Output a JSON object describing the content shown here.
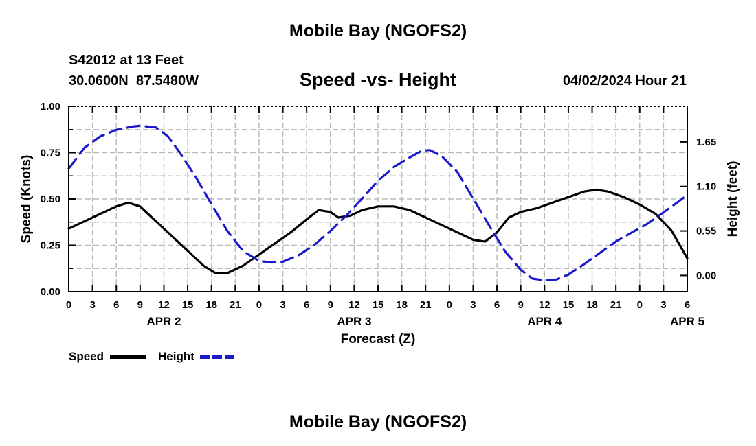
{
  "header": {
    "title": "Mobile Bay (NGOFS2)",
    "station": "S42012 at 13 Feet",
    "coords": "30.0600N  87.5480W",
    "subtitle": "Speed -vs- Height",
    "date": "04/02/2024 Hour 21"
  },
  "footer": {
    "title": "Mobile Bay (NGOFS2)"
  },
  "chart_data": {
    "type": "line",
    "title": "Speed -vs- Height",
    "xlabel": "Forecast (Z)",
    "ylabel_left": "Speed (Knots)",
    "ylabel_right": "Height (feet)",
    "x_range": [
      0,
      78
    ],
    "x_tick_hours": [
      0,
      3,
      6,
      9,
      12,
      15,
      18,
      21,
      24,
      27,
      30,
      33,
      36,
      39,
      42,
      45,
      48,
      51,
      54,
      57,
      60,
      63,
      66,
      69,
      72,
      75,
      78
    ],
    "x_tick_labels": [
      "0",
      "3",
      "6",
      "9",
      "12",
      "15",
      "18",
      "21",
      "0",
      "3",
      "6",
      "9",
      "12",
      "15",
      "18",
      "21",
      "0",
      "3",
      "6",
      "9",
      "12",
      "15",
      "18",
      "21",
      "0",
      "3",
      "6"
    ],
    "day_labels": [
      {
        "hour": 12,
        "label": "APR 2"
      },
      {
        "hour": 36,
        "label": "APR 3"
      },
      {
        "hour": 60,
        "label": "APR 4"
      },
      {
        "hour": 78,
        "label": "APR 5"
      }
    ],
    "left_axis": {
      "ylim": [
        0,
        1
      ],
      "ticks": [
        0,
        0.25,
        0.5,
        0.75,
        1.0
      ],
      "tick_labels": [
        "0.00",
        "0.25",
        "0.50",
        "0.75",
        "1.00"
      ]
    },
    "right_axis": {
      "ylim": [
        -0.2,
        2.09
      ],
      "ticks": [
        0,
        0.55,
        1.1,
        1.65
      ],
      "tick_labels": [
        "0.00",
        "0.55",
        "1.10",
        "1.65"
      ]
    },
    "grid": true,
    "series": [
      {
        "name": "Speed",
        "axis": "left",
        "color": "#000000",
        "dash": "solid",
        "points": [
          [
            0,
            0.34
          ],
          [
            2,
            0.38
          ],
          [
            4,
            0.42
          ],
          [
            6,
            0.46
          ],
          [
            7.5,
            0.48
          ],
          [
            9,
            0.46
          ],
          [
            11,
            0.38
          ],
          [
            13,
            0.3
          ],
          [
            15,
            0.22
          ],
          [
            17,
            0.14
          ],
          [
            18.5,
            0.1
          ],
          [
            20,
            0.1
          ],
          [
            22,
            0.14
          ],
          [
            24,
            0.2
          ],
          [
            26,
            0.26
          ],
          [
            28,
            0.32
          ],
          [
            30,
            0.39
          ],
          [
            31.5,
            0.44
          ],
          [
            33,
            0.43
          ],
          [
            34,
            0.4
          ],
          [
            35.5,
            0.41
          ],
          [
            37,
            0.44
          ],
          [
            39,
            0.46
          ],
          [
            41,
            0.46
          ],
          [
            43,
            0.44
          ],
          [
            45,
            0.4
          ],
          [
            47,
            0.36
          ],
          [
            49,
            0.32
          ],
          [
            51,
            0.28
          ],
          [
            52.5,
            0.27
          ],
          [
            54,
            0.32
          ],
          [
            55.5,
            0.4
          ],
          [
            57,
            0.43
          ],
          [
            59,
            0.45
          ],
          [
            61,
            0.48
          ],
          [
            63,
            0.51
          ],
          [
            65,
            0.54
          ],
          [
            66.5,
            0.55
          ],
          [
            68,
            0.54
          ],
          [
            70,
            0.51
          ],
          [
            72,
            0.47
          ],
          [
            74,
            0.42
          ],
          [
            76,
            0.33
          ],
          [
            78,
            0.18
          ]
        ]
      },
      {
        "name": "Height",
        "axis": "right",
        "color": "#1a1acc",
        "dash": "dashed",
        "points": [
          [
            0,
            1.32
          ],
          [
            2,
            1.58
          ],
          [
            4,
            1.72
          ],
          [
            6,
            1.8
          ],
          [
            8,
            1.84
          ],
          [
            9,
            1.85
          ],
          [
            11,
            1.83
          ],
          [
            12.5,
            1.72
          ],
          [
            14,
            1.52
          ],
          [
            16,
            1.22
          ],
          [
            18,
            0.88
          ],
          [
            20,
            0.55
          ],
          [
            22,
            0.3
          ],
          [
            24,
            0.18
          ],
          [
            25.5,
            0.16
          ],
          [
            27,
            0.17
          ],
          [
            29,
            0.25
          ],
          [
            31,
            0.38
          ],
          [
            33,
            0.55
          ],
          [
            35,
            0.74
          ],
          [
            37,
            0.95
          ],
          [
            39,
            1.17
          ],
          [
            41,
            1.34
          ],
          [
            43,
            1.46
          ],
          [
            44.5,
            1.54
          ],
          [
            45.5,
            1.55
          ],
          [
            47,
            1.48
          ],
          [
            49,
            1.28
          ],
          [
            51,
            0.95
          ],
          [
            53,
            0.62
          ],
          [
            55,
            0.3
          ],
          [
            57,
            0.07
          ],
          [
            58.5,
            -0.04
          ],
          [
            60,
            -0.06
          ],
          [
            61.5,
            -0.05
          ],
          [
            63,
            0.01
          ],
          [
            65,
            0.14
          ],
          [
            67,
            0.28
          ],
          [
            69,
            0.42
          ],
          [
            71,
            0.53
          ],
          [
            73,
            0.64
          ],
          [
            75,
            0.78
          ],
          [
            77,
            0.92
          ],
          [
            78,
            1.0
          ]
        ]
      }
    ],
    "legend": [
      {
        "label": "Speed",
        "color": "#000000",
        "dash": "solid"
      },
      {
        "label": "Height",
        "color": "#1a1acc",
        "dash": "dashed"
      }
    ],
    "legend_position": "bottom-left"
  }
}
